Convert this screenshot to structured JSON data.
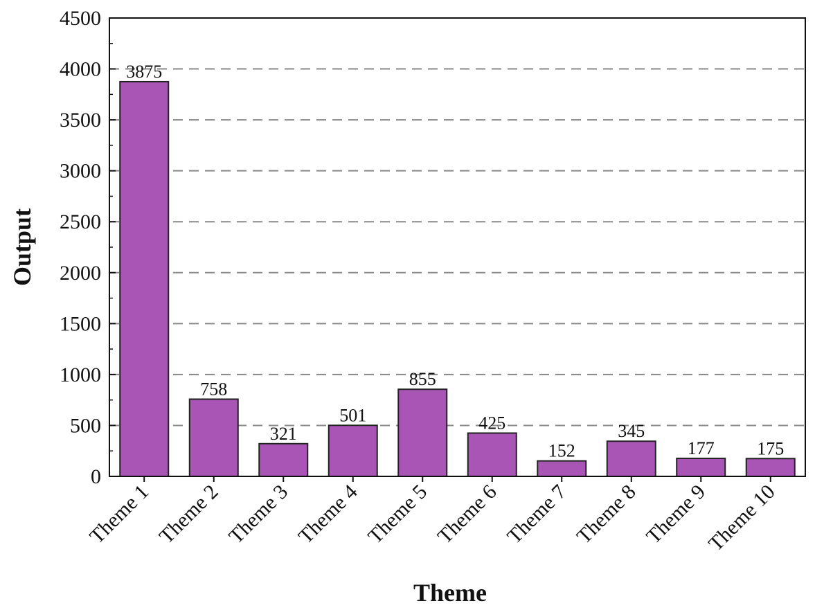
{
  "chart_data": {
    "type": "bar",
    "categories": [
      "Theme 1",
      "Theme 2",
      "Theme 3",
      "Theme 4",
      "Theme 5",
      "Theme 6",
      "Theme 7",
      "Theme 8",
      "Theme 9",
      "Theme 10"
    ],
    "values": [
      3875,
      758,
      321,
      501,
      855,
      425,
      152,
      345,
      177,
      175
    ],
    "data_labels": [
      "3875",
      "758",
      "321",
      "501",
      "855",
      "425",
      "152",
      "345",
      "177",
      "175"
    ],
    "xlabel": "Theme",
    "ylabel": "Output",
    "ylim": [
      0,
      4500
    ],
    "yticks": [
      "0",
      "500",
      "1000",
      "1500",
      "2000",
      "2500",
      "3000",
      "3500",
      "4000",
      "4500"
    ],
    "grid": "horizontal dashed",
    "bar_color": "#a855b5",
    "bar_edge_color": "#222222"
  }
}
